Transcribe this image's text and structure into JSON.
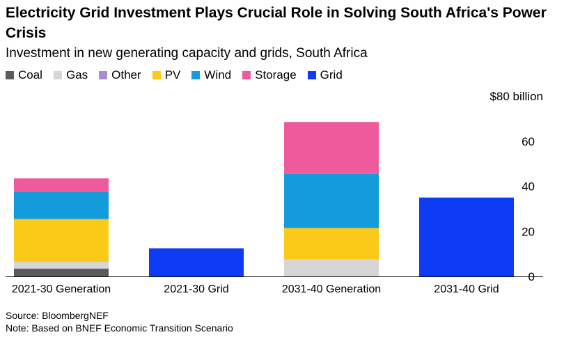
{
  "chart_data": {
    "type": "bar",
    "stacked": true,
    "title": "Electricity Grid Investment Plays Crucial Role in Solving South Africa's Power Crisis",
    "subtitle": "Investment in new generating capacity and grids, South Africa",
    "categories": [
      "2021-30 Generation",
      "2021-30 Grid",
      "2031-40 Generation",
      "2031-40 Grid"
    ],
    "series": [
      {
        "name": "Coal",
        "color": "#5b5b5b",
        "values": [
          3.5,
          0,
          0,
          0
        ]
      },
      {
        "name": "Gas",
        "color": "#d6d6d6",
        "values": [
          3,
          0,
          7.5,
          0
        ]
      },
      {
        "name": "Other",
        "color": "#a58fd1",
        "values": [
          0,
          0,
          0,
          0
        ]
      },
      {
        "name": "PV",
        "color": "#fbc918",
        "values": [
          19,
          0,
          14,
          0
        ]
      },
      {
        "name": "Wind",
        "color": "#149bdc",
        "values": [
          12,
          0,
          24,
          0
        ]
      },
      {
        "name": "Storage",
        "color": "#ee5a9c",
        "values": [
          6,
          0,
          23,
          0
        ]
      },
      {
        "name": "Grid",
        "color": "#0d3cf4",
        "values": [
          0,
          12.5,
          0,
          35
        ]
      }
    ],
    "yaxis": {
      "min": 0,
      "max": 80,
      "ticks": [
        "0",
        "20",
        "40",
        "60",
        "$80 billion"
      ],
      "position": "right"
    },
    "legend_position": "top"
  },
  "footer": {
    "source": "Source: BloombergNEF",
    "note": "Note: Based on BNEF Economic Transition Scenario"
  }
}
